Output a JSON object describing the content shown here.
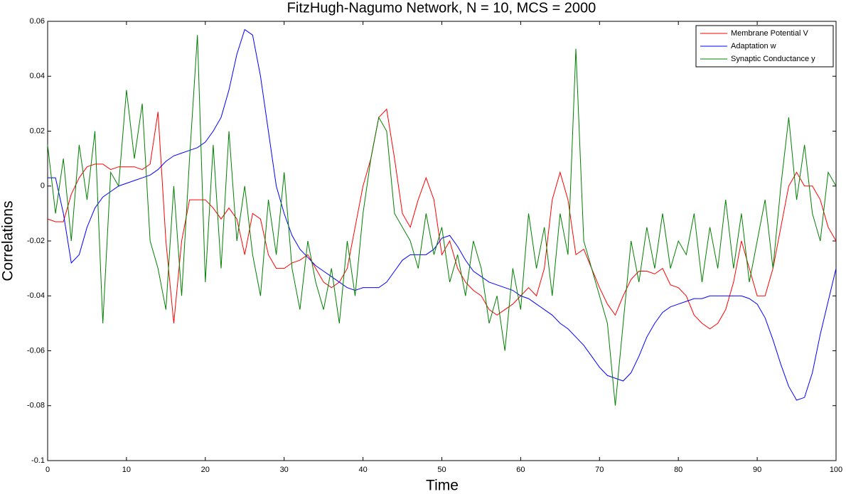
{
  "chart_data": {
    "type": "line",
    "title": "FitzHugh-Nagumo Network, N = 10, MCS = 2000",
    "x_label": "Time",
    "y_label": "Correlations",
    "x": [
      0,
      1,
      2,
      3,
      4,
      5,
      6,
      7,
      8,
      9,
      10,
      11,
      12,
      13,
      14,
      15,
      16,
      17,
      18,
      19,
      20,
      21,
      22,
      23,
      24,
      25,
      26,
      27,
      28,
      29,
      30,
      31,
      32,
      33,
      34,
      35,
      36,
      37,
      38,
      39,
      40,
      41,
      42,
      43,
      44,
      45,
      46,
      47,
      48,
      49,
      50,
      51,
      52,
      53,
      54,
      55,
      56,
      57,
      58,
      59,
      60,
      61,
      62,
      63,
      64,
      65,
      66,
      67,
      68,
      69,
      70,
      71,
      72,
      73,
      74,
      75,
      76,
      77,
      78,
      79,
      80,
      81,
      82,
      83,
      84,
      85,
      86,
      87,
      88,
      89,
      90,
      91,
      92,
      93,
      94,
      95,
      96,
      97,
      98,
      99,
      100
    ],
    "series": [
      {
        "name": "Membrane Potential V",
        "color": "#ff0000",
        "values": [
          -0.012,
          -0.013,
          -0.013,
          -0.003,
          0.003,
          0.007,
          0.008,
          0.008,
          0.006,
          0.007,
          0.007,
          0.007,
          0.006,
          0.008,
          0.027,
          -0.02,
          -0.05,
          -0.02,
          -0.005,
          -0.005,
          -0.005,
          -0.008,
          -0.012,
          -0.008,
          -0.012,
          -0.025,
          -0.01,
          -0.012,
          -0.025,
          -0.03,
          -0.03,
          -0.028,
          -0.027,
          -0.025,
          -0.03,
          -0.035,
          -0.037,
          -0.035,
          -0.03,
          -0.015,
          0.0,
          0.01,
          0.025,
          0.028,
          0.01,
          -0.01,
          -0.015,
          -0.005,
          0.003,
          -0.005,
          -0.025,
          -0.02,
          -0.03,
          -0.035,
          -0.038,
          -0.04,
          -0.045,
          -0.047,
          -0.045,
          -0.043,
          -0.04,
          -0.037,
          -0.04,
          -0.03,
          -0.005,
          0.005,
          -0.005,
          -0.025,
          -0.023,
          -0.03,
          -0.037,
          -0.043,
          -0.047,
          -0.04,
          -0.034,
          -0.031,
          -0.031,
          -0.032,
          -0.03,
          -0.036,
          -0.037,
          -0.04,
          -0.047,
          -0.05,
          -0.052,
          -0.05,
          -0.045,
          -0.035,
          -0.02,
          -0.03,
          -0.04,
          -0.04,
          -0.03,
          -0.015,
          0.0,
          0.005,
          0.0,
          0.0,
          -0.005,
          -0.015,
          -0.02
        ]
      },
      {
        "name": "Adaptation w",
        "color": "#0000ff",
        "values": [
          0.003,
          0.003,
          -0.01,
          -0.028,
          -0.025,
          -0.015,
          -0.008,
          -0.004,
          -0.002,
          0.0,
          0.001,
          0.002,
          0.003,
          0.004,
          0.006,
          0.009,
          0.011,
          0.012,
          0.013,
          0.014,
          0.016,
          0.02,
          0.025,
          0.035,
          0.048,
          0.057,
          0.055,
          0.04,
          0.02,
          0.0,
          -0.01,
          -0.018,
          -0.023,
          -0.026,
          -0.029,
          -0.031,
          -0.033,
          -0.035,
          -0.037,
          -0.038,
          -0.037,
          -0.037,
          -0.037,
          -0.035,
          -0.031,
          -0.027,
          -0.025,
          -0.025,
          -0.025,
          -0.023,
          -0.019,
          -0.018,
          -0.022,
          -0.027,
          -0.031,
          -0.033,
          -0.035,
          -0.036,
          -0.037,
          -0.038,
          -0.04,
          -0.041,
          -0.043,
          -0.045,
          -0.047,
          -0.05,
          -0.052,
          -0.055,
          -0.058,
          -0.062,
          -0.066,
          -0.069,
          -0.07,
          -0.071,
          -0.068,
          -0.062,
          -0.055,
          -0.05,
          -0.046,
          -0.044,
          -0.043,
          -0.042,
          -0.041,
          -0.041,
          -0.04,
          -0.04,
          -0.04,
          -0.04,
          -0.04,
          -0.041,
          -0.043,
          -0.048,
          -0.056,
          -0.065,
          -0.073,
          -0.078,
          -0.077,
          -0.068,
          -0.054,
          -0.042,
          -0.03
        ]
      },
      {
        "name": "Synaptic Conductance y",
        "color": "#008000",
        "values": [
          0.015,
          -0.01,
          0.01,
          -0.02,
          0.015,
          -0.005,
          0.02,
          -0.05,
          0.005,
          0.0,
          0.035,
          0.01,
          0.03,
          -0.02,
          -0.03,
          -0.045,
          0.0,
          -0.04,
          0.01,
          0.055,
          -0.035,
          0.015,
          -0.03,
          0.02,
          -0.02,
          0.0,
          -0.025,
          -0.04,
          -0.005,
          -0.025,
          0.005,
          -0.03,
          -0.045,
          -0.02,
          -0.035,
          -0.045,
          -0.03,
          -0.05,
          -0.02,
          -0.04,
          -0.01,
          0.01,
          0.025,
          0.02,
          -0.01,
          -0.015,
          -0.02,
          -0.03,
          -0.01,
          -0.025,
          -0.015,
          -0.035,
          -0.025,
          -0.04,
          -0.02,
          -0.03,
          -0.05,
          -0.04,
          -0.06,
          -0.03,
          -0.045,
          -0.01,
          -0.03,
          -0.015,
          -0.04,
          -0.01,
          -0.025,
          0.05,
          -0.02,
          -0.03,
          -0.04,
          -0.05,
          -0.08,
          -0.05,
          -0.02,
          -0.035,
          -0.015,
          -0.03,
          -0.01,
          -0.03,
          -0.02,
          -0.025,
          -0.01,
          -0.035,
          -0.015,
          -0.03,
          -0.005,
          -0.03,
          -0.01,
          -0.035,
          -0.02,
          -0.005,
          -0.03,
          0.0,
          0.025,
          -0.005,
          0.015,
          -0.01,
          -0.02,
          0.005,
          0.0
        ]
      }
    ],
    "xlim": [
      0,
      100
    ],
    "xticks": [
      0,
      10,
      20,
      30,
      40,
      50,
      60,
      70,
      80,
      90,
      100
    ],
    "ylim": [
      -0.1,
      0.06
    ],
    "yticks": [
      -0.1,
      -0.08,
      -0.06,
      -0.04,
      -0.02,
      0,
      0.02,
      0.04,
      0.06
    ],
    "grid": false,
    "legend": "upper right"
  }
}
